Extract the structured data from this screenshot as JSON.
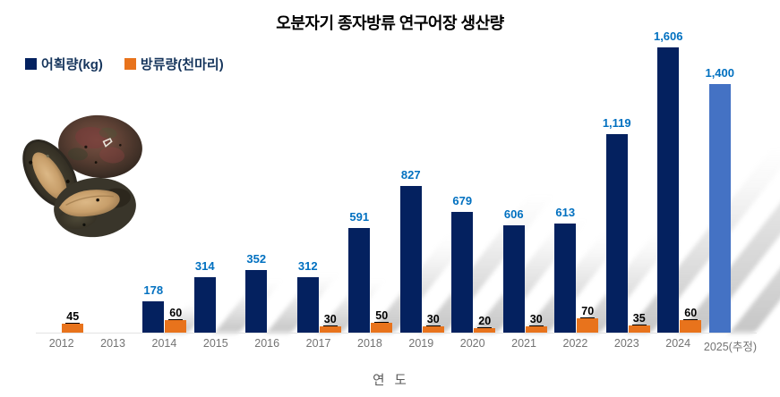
{
  "title": "오분자기 종자방류 연구어장 생산량",
  "legend": {
    "items": [
      {
        "label": "어획량(kg)",
        "color": "#04215f"
      },
      {
        "label": "방류량(천마리)",
        "color": "#e8731c"
      }
    ]
  },
  "xaxis": {
    "title": "연  도"
  },
  "photo": {
    "name": "abalone-shells-photo"
  },
  "chart_data": {
    "type": "bar",
    "title": "오분자기 종자방류 연구어장 생산량",
    "xlabel": "연 도",
    "ylabel": "",
    "categories": [
      "2012",
      "2013",
      "2014",
      "2015",
      "2016",
      "2017",
      "2018",
      "2019",
      "2020",
      "2021",
      "2022",
      "2023",
      "2024",
      "2025(추정)"
    ],
    "series": [
      {
        "name": "어획량(kg)",
        "color": "#04215f",
        "label_color": "#0070c0",
        "values": [
          null,
          null,
          178,
          314,
          352,
          312,
          591,
          827,
          679,
          606,
          613,
          1119,
          1606,
          1400
        ]
      },
      {
        "name": "방류량(천마리)",
        "color": "#e8731c",
        "label_color": "#000000",
        "values": [
          45,
          null,
          60,
          null,
          null,
          30,
          50,
          30,
          20,
          30,
          70,
          35,
          60,
          null
        ]
      }
    ],
    "highlight": {
      "category": "2025(추정)",
      "series": "어획량(kg)",
      "color": "#4472c4"
    },
    "ylim": [
      0,
      1670
    ],
    "grid": false,
    "legend_position": "top-left",
    "value_labels": true
  }
}
